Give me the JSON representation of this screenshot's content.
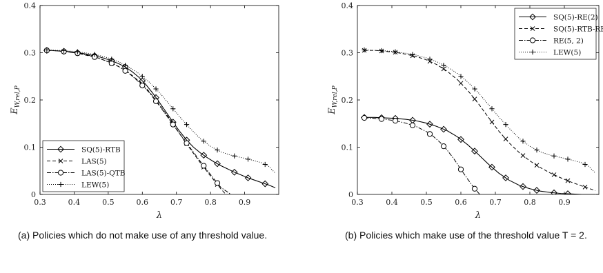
{
  "captions": {
    "a": "(a) Policies which do not make use of any threshold value.",
    "b": "(b) Policies which make use of the threshold value T = 2."
  },
  "chart_data": [
    {
      "type": "line",
      "panel": "a",
      "xlabel": "λ",
      "ylabel": "E_{W,rel,P}",
      "xlim": [
        0.3,
        1.0
      ],
      "ylim": [
        0,
        0.4
      ],
      "xticks": [
        0.3,
        0.4,
        0.5,
        0.6,
        0.7,
        0.8,
        0.9
      ],
      "yticks": [
        0,
        0.1,
        0.2,
        0.3,
        0.4
      ],
      "grid": false,
      "legend_position": "bottom-left",
      "series": [
        {
          "name": "SQ(5)-RTB",
          "line_style": "solid",
          "marker": "diamond",
          "color": "#000000",
          "x": [
            0.32,
            0.33,
            0.35,
            0.37,
            0.39,
            0.41,
            0.43,
            0.45,
            0.47,
            0.49,
            0.51,
            0.53,
            0.55,
            0.57,
            0.59,
            0.61,
            0.63,
            0.65,
            0.67,
            0.69,
            0.71,
            0.73,
            0.75,
            0.77,
            0.79,
            0.81,
            0.83,
            0.85,
            0.87,
            0.89,
            0.91,
            0.93,
            0.95,
            0.97,
            0.99
          ],
          "y": [
            0.305,
            0.305,
            0.304,
            0.303,
            0.302,
            0.3,
            0.298,
            0.295,
            0.292,
            0.288,
            0.283,
            0.277,
            0.27,
            0.26,
            0.248,
            0.233,
            0.215,
            0.195,
            0.174,
            0.153,
            0.133,
            0.115,
            0.1,
            0.088,
            0.078,
            0.069,
            0.061,
            0.054,
            0.047,
            0.041,
            0.035,
            0.03,
            0.025,
            0.02,
            0.014
          ],
          "marker_x": [
            0.32,
            0.37,
            0.41,
            0.46,
            0.51,
            0.55,
            0.6,
            0.64,
            0.69,
            0.73,
            0.78,
            0.82,
            0.87,
            0.91,
            0.96
          ]
        },
        {
          "name": "LAS(5)",
          "line_style": "dashed",
          "marker": "x",
          "color": "#000000",
          "x": [
            0.32,
            0.35,
            0.38,
            0.41,
            0.44,
            0.47,
            0.5,
            0.53,
            0.56,
            0.59,
            0.62,
            0.65,
            0.68,
            0.71,
            0.74,
            0.77,
            0.8,
            0.83,
            0.845
          ],
          "y": [
            0.305,
            0.304,
            0.302,
            0.299,
            0.294,
            0.289,
            0.281,
            0.271,
            0.258,
            0.24,
            0.218,
            0.19,
            0.16,
            0.128,
            0.097,
            0.067,
            0.039,
            0.012,
            0.0
          ],
          "marker_x": [
            0.32,
            0.37,
            0.41,
            0.46,
            0.51,
            0.55,
            0.6,
            0.64,
            0.69,
            0.73,
            0.78,
            0.82
          ]
        },
        {
          "name": "LAS(5)-QTB",
          "line_style": "dashdot",
          "marker": "circle",
          "color": "#000000",
          "x": [
            0.32,
            0.35,
            0.38,
            0.41,
            0.44,
            0.47,
            0.5,
            0.53,
            0.56,
            0.59,
            0.62,
            0.65,
            0.68,
            0.71,
            0.74,
            0.77,
            0.8,
            0.83,
            0.86
          ],
          "y": [
            0.305,
            0.304,
            0.302,
            0.299,
            0.295,
            0.289,
            0.281,
            0.271,
            0.257,
            0.238,
            0.216,
            0.188,
            0.158,
            0.128,
            0.099,
            0.07,
            0.042,
            0.015,
            0.0
          ],
          "marker_x": [
            0.32,
            0.37,
            0.41,
            0.46,
            0.51,
            0.55,
            0.6,
            0.64,
            0.69,
            0.73,
            0.78,
            0.82
          ]
        },
        {
          "name": "LEW(5)",
          "line_style": "dotted",
          "marker": "plus",
          "color": "#000000",
          "x": [
            0.32,
            0.35,
            0.38,
            0.41,
            0.44,
            0.47,
            0.5,
            0.53,
            0.56,
            0.59,
            0.62,
            0.65,
            0.68,
            0.71,
            0.74,
            0.77,
            0.8,
            0.83,
            0.86,
            0.89,
            0.92,
            0.95,
            0.97,
            0.99
          ],
          "y": [
            0.306,
            0.305,
            0.304,
            0.302,
            0.299,
            0.295,
            0.289,
            0.281,
            0.27,
            0.256,
            0.238,
            0.216,
            0.19,
            0.164,
            0.14,
            0.118,
            0.102,
            0.09,
            0.083,
            0.078,
            0.073,
            0.067,
            0.06,
            0.045
          ],
          "marker_x": [
            0.32,
            0.37,
            0.41,
            0.46,
            0.51,
            0.55,
            0.6,
            0.64,
            0.69,
            0.73,
            0.78,
            0.82,
            0.87,
            0.91,
            0.96
          ]
        }
      ]
    },
    {
      "type": "line",
      "panel": "b",
      "xlabel": "λ",
      "ylabel": "E_{W,rel,P}",
      "xlim": [
        0.3,
        1.0
      ],
      "ylim": [
        0,
        0.4
      ],
      "xticks": [
        0.3,
        0.4,
        0.5,
        0.6,
        0.7,
        0.8,
        0.9
      ],
      "yticks": [
        0,
        0.1,
        0.2,
        0.3,
        0.4
      ],
      "grid": false,
      "legend_position": "top-right",
      "series": [
        {
          "name": "SQ(5)-RE(2)",
          "line_style": "solid",
          "marker": "diamond",
          "color": "#000000",
          "x": [
            0.32,
            0.35,
            0.38,
            0.41,
            0.44,
            0.47,
            0.5,
            0.53,
            0.56,
            0.59,
            0.62,
            0.65,
            0.68,
            0.71,
            0.74,
            0.77,
            0.8,
            0.83,
            0.86,
            0.89,
            0.92,
            0.95,
            0.99
          ],
          "y": [
            0.163,
            0.163,
            0.162,
            0.161,
            0.159,
            0.156,
            0.151,
            0.144,
            0.135,
            0.122,
            0.105,
            0.085,
            0.064,
            0.045,
            0.03,
            0.019,
            0.012,
            0.007,
            0.004,
            0.002,
            0.001,
            0.0,
            0.0
          ],
          "marker_x": [
            0.32,
            0.37,
            0.41,
            0.46,
            0.51,
            0.55,
            0.6,
            0.64,
            0.69,
            0.73,
            0.78,
            0.82,
            0.87,
            0.91
          ]
        },
        {
          "name": "SQ(5)-RTB-RE(2)",
          "line_style": "dashed",
          "marker": "x",
          "color": "#000000",
          "x": [
            0.32,
            0.35,
            0.38,
            0.41,
            0.44,
            0.47,
            0.5,
            0.53,
            0.56,
            0.59,
            0.62,
            0.65,
            0.68,
            0.71,
            0.74,
            0.77,
            0.8,
            0.83,
            0.86,
            0.89,
            0.92,
            0.95,
            0.99
          ],
          "y": [
            0.305,
            0.305,
            0.303,
            0.301,
            0.297,
            0.292,
            0.285,
            0.275,
            0.261,
            0.243,
            0.22,
            0.193,
            0.163,
            0.134,
            0.109,
            0.088,
            0.071,
            0.057,
            0.045,
            0.035,
            0.026,
            0.018,
            0.008
          ],
          "marker_x": [
            0.32,
            0.37,
            0.41,
            0.46,
            0.51,
            0.55,
            0.6,
            0.64,
            0.69,
            0.73,
            0.78,
            0.82,
            0.87,
            0.91,
            0.96
          ]
        },
        {
          "name": "RE(5, 2)",
          "line_style": "dashdot",
          "marker": "circle",
          "color": "#000000",
          "x": [
            0.32,
            0.35,
            0.38,
            0.41,
            0.44,
            0.47,
            0.5,
            0.52,
            0.54,
            0.56,
            0.58,
            0.6,
            0.62,
            0.64,
            0.655
          ],
          "y": [
            0.162,
            0.161,
            0.159,
            0.156,
            0.151,
            0.144,
            0.133,
            0.123,
            0.11,
            0.094,
            0.075,
            0.053,
            0.032,
            0.012,
            0.0
          ],
          "marker_x": [
            0.32,
            0.37,
            0.41,
            0.46,
            0.51,
            0.55,
            0.6,
            0.64
          ]
        },
        {
          "name": "LEW(5)",
          "line_style": "dotted",
          "marker": "plus",
          "color": "#000000",
          "x": [
            0.32,
            0.35,
            0.38,
            0.41,
            0.44,
            0.47,
            0.5,
            0.53,
            0.56,
            0.59,
            0.62,
            0.65,
            0.68,
            0.71,
            0.74,
            0.77,
            0.8,
            0.83,
            0.86,
            0.89,
            0.92,
            0.95,
            0.97,
            0.99
          ],
          "y": [
            0.306,
            0.305,
            0.304,
            0.302,
            0.299,
            0.295,
            0.289,
            0.281,
            0.27,
            0.256,
            0.238,
            0.216,
            0.19,
            0.164,
            0.14,
            0.118,
            0.102,
            0.09,
            0.083,
            0.078,
            0.073,
            0.067,
            0.06,
            0.045
          ],
          "marker_x": [
            0.32,
            0.37,
            0.41,
            0.46,
            0.51,
            0.55,
            0.6,
            0.64,
            0.69,
            0.73,
            0.78,
            0.82,
            0.87,
            0.91,
            0.96
          ]
        }
      ]
    }
  ]
}
